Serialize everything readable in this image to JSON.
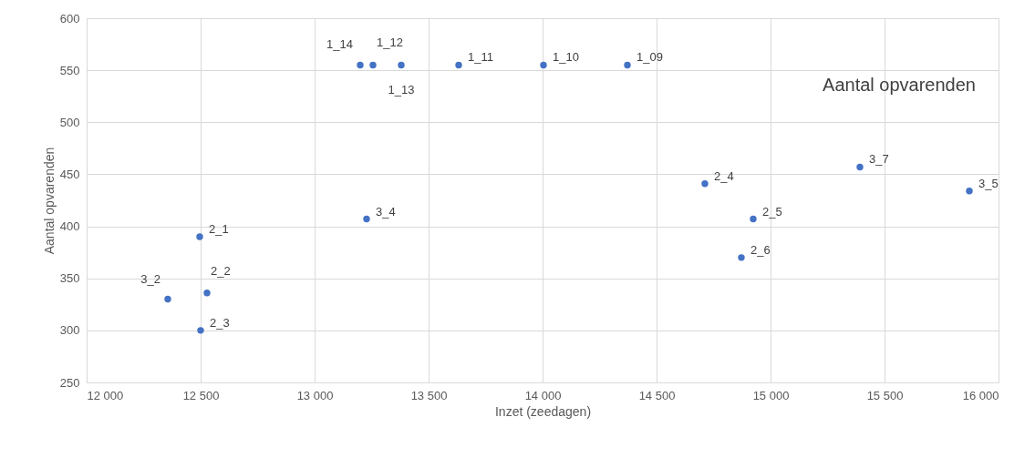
{
  "chart_data": {
    "type": "scatter",
    "title": "Aantal opvarenden",
    "xlabel": "Inzet (zeedagen)",
    "ylabel": "Aantal opvarenden",
    "x": [
      13200,
      13256,
      13380,
      13632,
      14004,
      14372,
      14712,
      15392,
      15872,
      14924,
      14872,
      13228,
      12496,
      12356,
      12528,
      12500
    ],
    "series": [
      {
        "color": "#4472c4",
        "values": [
          555,
          555,
          555,
          555,
          555,
          555,
          441,
          457,
          434,
          407,
          370,
          407,
          390,
          330,
          336,
          300
        ],
        "value_labels": [
          "1_14",
          "1_12",
          "1_13",
          "1_11",
          "1_10",
          "1_09",
          "2_4",
          "3_7",
          "3_5",
          "2_5",
          "2_6",
          "3_4",
          "2_1",
          "3_2",
          "2_2",
          "2_3"
        ]
      }
    ],
    "xlim": [
      12000,
      16000
    ],
    "xticks": [
      {
        "value": 12000,
        "label": "12 000"
      },
      {
        "value": 12500,
        "label": "12 500"
      },
      {
        "value": 13000,
        "label": "13 000"
      },
      {
        "value": 13500,
        "label": "13 500"
      },
      {
        "value": 14000,
        "label": "14 000"
      },
      {
        "value": 14500,
        "label": "14 500"
      },
      {
        "value": 15000,
        "label": "15 000"
      },
      {
        "value": 15500,
        "label": "15 500"
      },
      {
        "value": 16000,
        "label": "16 000"
      }
    ],
    "ylim": [
      250,
      600
    ],
    "yticks": [
      250,
      300,
      350,
      400,
      450,
      500,
      550,
      600
    ],
    "grid": true,
    "marker": "circle"
  }
}
